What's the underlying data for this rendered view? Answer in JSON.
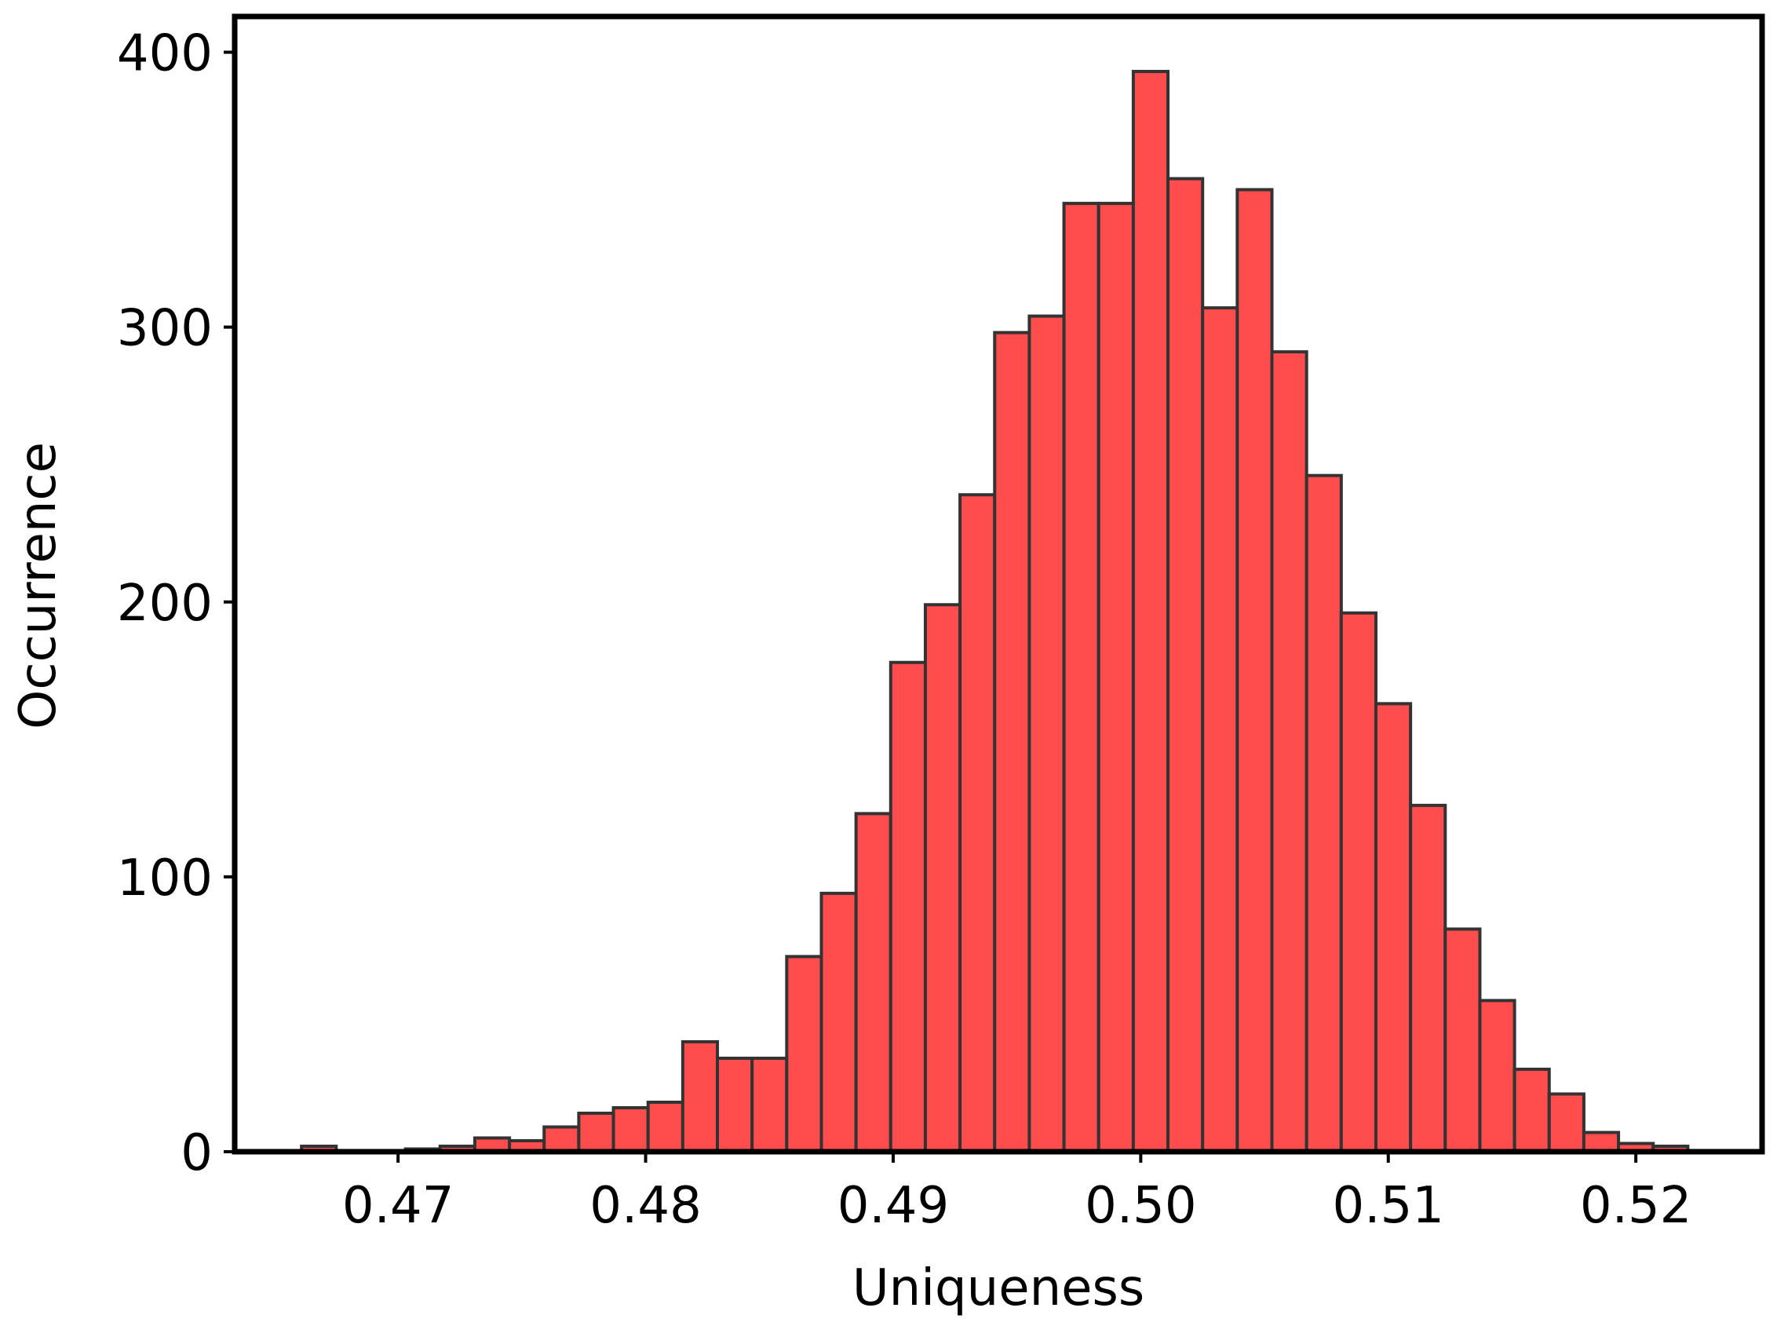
{
  "chart_data": {
    "type": "bar",
    "title": "",
    "xlabel": "Uniqueness",
    "ylabel": "Occurrence",
    "xlim": [
      0.4634,
      0.5251
    ],
    "ylim": [
      0,
      413
    ],
    "grid": false,
    "bin_start": 0.4661,
    "bin_width": 0.0014,
    "values": [
      2,
      0,
      0,
      1,
      2,
      5,
      4,
      9,
      14,
      16,
      18,
      40,
      34,
      34,
      71,
      94,
      123,
      178,
      199,
      239,
      298,
      304,
      345,
      345,
      393,
      354,
      307,
      350,
      291,
      246,
      196,
      163,
      126,
      81,
      55,
      30,
      21,
      7,
      3,
      2
    ],
    "xticks": [
      {
        "value": 0.47,
        "label": "0.47"
      },
      {
        "value": 0.48,
        "label": "0.48"
      },
      {
        "value": 0.49,
        "label": "0.49"
      },
      {
        "value": 0.5,
        "label": "0.50"
      },
      {
        "value": 0.51,
        "label": "0.51"
      },
      {
        "value": 0.52,
        "label": "0.52"
      }
    ],
    "yticks": [
      {
        "value": 0,
        "label": "0"
      },
      {
        "value": 100,
        "label": "100"
      },
      {
        "value": 200,
        "label": "200"
      },
      {
        "value": 300,
        "label": "300"
      },
      {
        "value": 400,
        "label": "400"
      }
    ],
    "colors": {
      "bar_fill": "#ff4d4d",
      "bar_edge": "#333333",
      "axes": "#000000"
    }
  }
}
